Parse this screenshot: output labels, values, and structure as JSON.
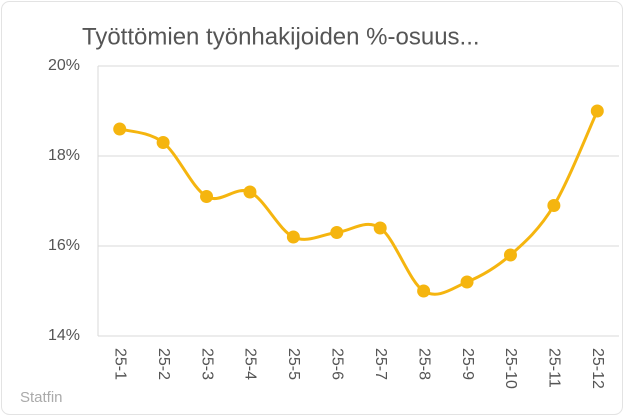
{
  "chart_data": {
    "type": "line",
    "title": "Työttömien työnhakijoiden %-osuus...",
    "source": "Statfin",
    "categories": [
      "25-1",
      "25-2",
      "25-3",
      "25-4",
      "25-5",
      "25-6",
      "25-7",
      "25-8",
      "25-9",
      "25-10",
      "25-11",
      "25-12"
    ],
    "series": [
      {
        "name": "Työttömien työnhakijoiden %-osuus",
        "color": "#f5b50f",
        "values": [
          18.6,
          18.3,
          17.1,
          17.2,
          16.2,
          16.3,
          16.4,
          15.0,
          15.2,
          15.8,
          16.9,
          19.0
        ]
      }
    ],
    "ylim": [
      14,
      20
    ],
    "yticks": [
      {
        "value": 14,
        "label": "14%"
      },
      {
        "value": 16,
        "label": "16%"
      },
      {
        "value": 18,
        "label": "18%"
      },
      {
        "value": 20,
        "label": "20%"
      }
    ],
    "grid": true
  }
}
